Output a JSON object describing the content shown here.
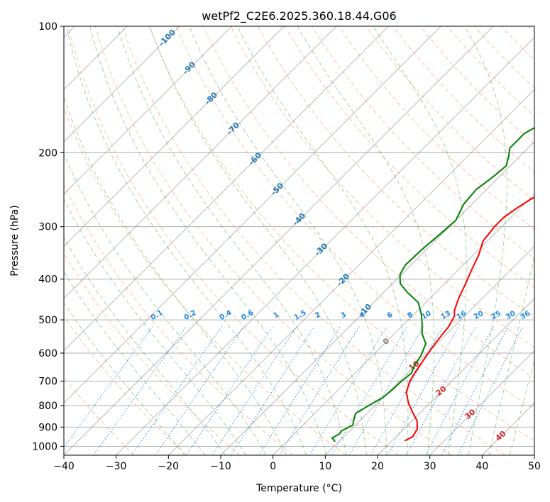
{
  "chart_data": {
    "type": "line",
    "title": "wetPf2_C2E6.2025.360.18.44.G06",
    "xlabel": "Temperature (°C)",
    "ylabel": "Pressure (hPa)",
    "xlim": [
      -40,
      50
    ],
    "ylim_pressure": [
      1050,
      100
    ],
    "x_ticks": [
      -40,
      -30,
      -20,
      -10,
      0,
      10,
      20,
      30,
      40,
      50
    ],
    "y_ticks": [
      1000,
      900,
      800,
      700,
      600,
      500,
      400,
      300,
      200,
      100
    ],
    "grid": true,
    "colors": {
      "temperature": "#ff0000",
      "dewpoint": "#008000",
      "isotherm": "#808080",
      "dry_adiabat": "#ff7f50",
      "moist_adiabat": "#2ca02c",
      "mixing_ratio": "#1e88e5",
      "isotherm_label": "#1f77b4",
      "mixing_label": "#1e88e5",
      "dry_label": "#d62728",
      "zero_label": "#808080"
    },
    "series": [
      {
        "name": "Temperature",
        "color": "#ff0000",
        "points": [
          [
            22.4,
            970
          ],
          [
            23.2,
            950
          ],
          [
            22.6,
            910
          ],
          [
            21.0,
            870
          ],
          [
            18.5,
            830
          ],
          [
            16.0,
            790
          ],
          [
            13.5,
            745
          ],
          [
            12.0,
            700
          ],
          [
            11.3,
            665
          ],
          [
            10.7,
            630
          ],
          [
            9.8,
            580
          ],
          [
            9.3,
            545
          ],
          [
            9.0,
            520
          ],
          [
            8.1,
            490
          ],
          [
            7.0,
            475
          ],
          [
            5.5,
            445
          ],
          [
            4.0,
            410
          ],
          [
            2.5,
            380
          ],
          [
            1.0,
            350
          ],
          [
            -0.8,
            325
          ],
          [
            -1.4,
            300
          ],
          [
            -1.4,
            285
          ],
          [
            -0.6,
            270
          ],
          [
            0.3,
            258
          ],
          [
            2.5,
            240
          ],
          [
            5.5,
            220
          ],
          [
            8.0,
            200
          ],
          [
            9.5,
            185
          ],
          [
            10.8,
            168
          ],
          [
            11.6,
            155
          ],
          [
            12.5,
            147
          ],
          [
            14.0,
            138
          ],
          [
            15.4,
            128
          ],
          [
            15.8,
            122
          ],
          [
            17.0,
            113
          ],
          [
            19.3,
            108
          ],
          [
            21.5,
            103
          ],
          [
            22.5,
            100
          ]
        ]
      },
      {
        "name": "Dewpoint",
        "color": "#008000",
        "points": [
          [
            9.3,
            975
          ],
          [
            8.0,
            955
          ],
          [
            8.6,
            935
          ],
          [
            8.4,
            920
          ],
          [
            9.5,
            890
          ],
          [
            8.6,
            862
          ],
          [
            7.8,
            835
          ],
          [
            8.8,
            800
          ],
          [
            10.0,
            765
          ],
          [
            10.3,
            730
          ],
          [
            10.4,
            700
          ],
          [
            10.8,
            670
          ],
          [
            9.8,
            640
          ],
          [
            9.3,
            610
          ],
          [
            7.9,
            570
          ],
          [
            5.3,
            540
          ],
          [
            3.3,
            510
          ],
          [
            1.4,
            485
          ],
          [
            -1.4,
            455
          ],
          [
            -5.5,
            430
          ],
          [
            -8.5,
            410
          ],
          [
            -10.3,
            390
          ],
          [
            -11.1,
            370
          ],
          [
            -10.9,
            340
          ],
          [
            -10.4,
            315
          ],
          [
            -10.0,
            290
          ],
          [
            -11.6,
            265
          ],
          [
            -12.0,
            245
          ],
          [
            -11.2,
            228
          ],
          [
            -10.8,
            215
          ],
          [
            -12.0,
            205
          ],
          [
            -13.5,
            195
          ],
          [
            -13.5,
            180
          ],
          [
            -11.2,
            165
          ],
          [
            -8.7,
            150
          ],
          [
            -6.0,
            137
          ],
          [
            -3.2,
            125
          ],
          [
            -0.1,
            115
          ],
          [
            0.8,
            108
          ],
          [
            0.6,
            100
          ]
        ]
      }
    ],
    "isotherm_labels": [
      "-100",
      "-90",
      "-80",
      "-70",
      "-60",
      "-50",
      "-40",
      "-30",
      "-20",
      "-10"
    ],
    "mixing_ratio_labels": [
      "0.1",
      "0.2",
      "0.4",
      "0.6",
      "1",
      "1.5",
      "2",
      "3",
      "4",
      "6",
      "8",
      "10",
      "13",
      "16",
      "20",
      "25",
      "30",
      "36"
    ],
    "dry_adiabat_labels": [
      "0",
      "10",
      "20",
      "30",
      "40"
    ]
  }
}
